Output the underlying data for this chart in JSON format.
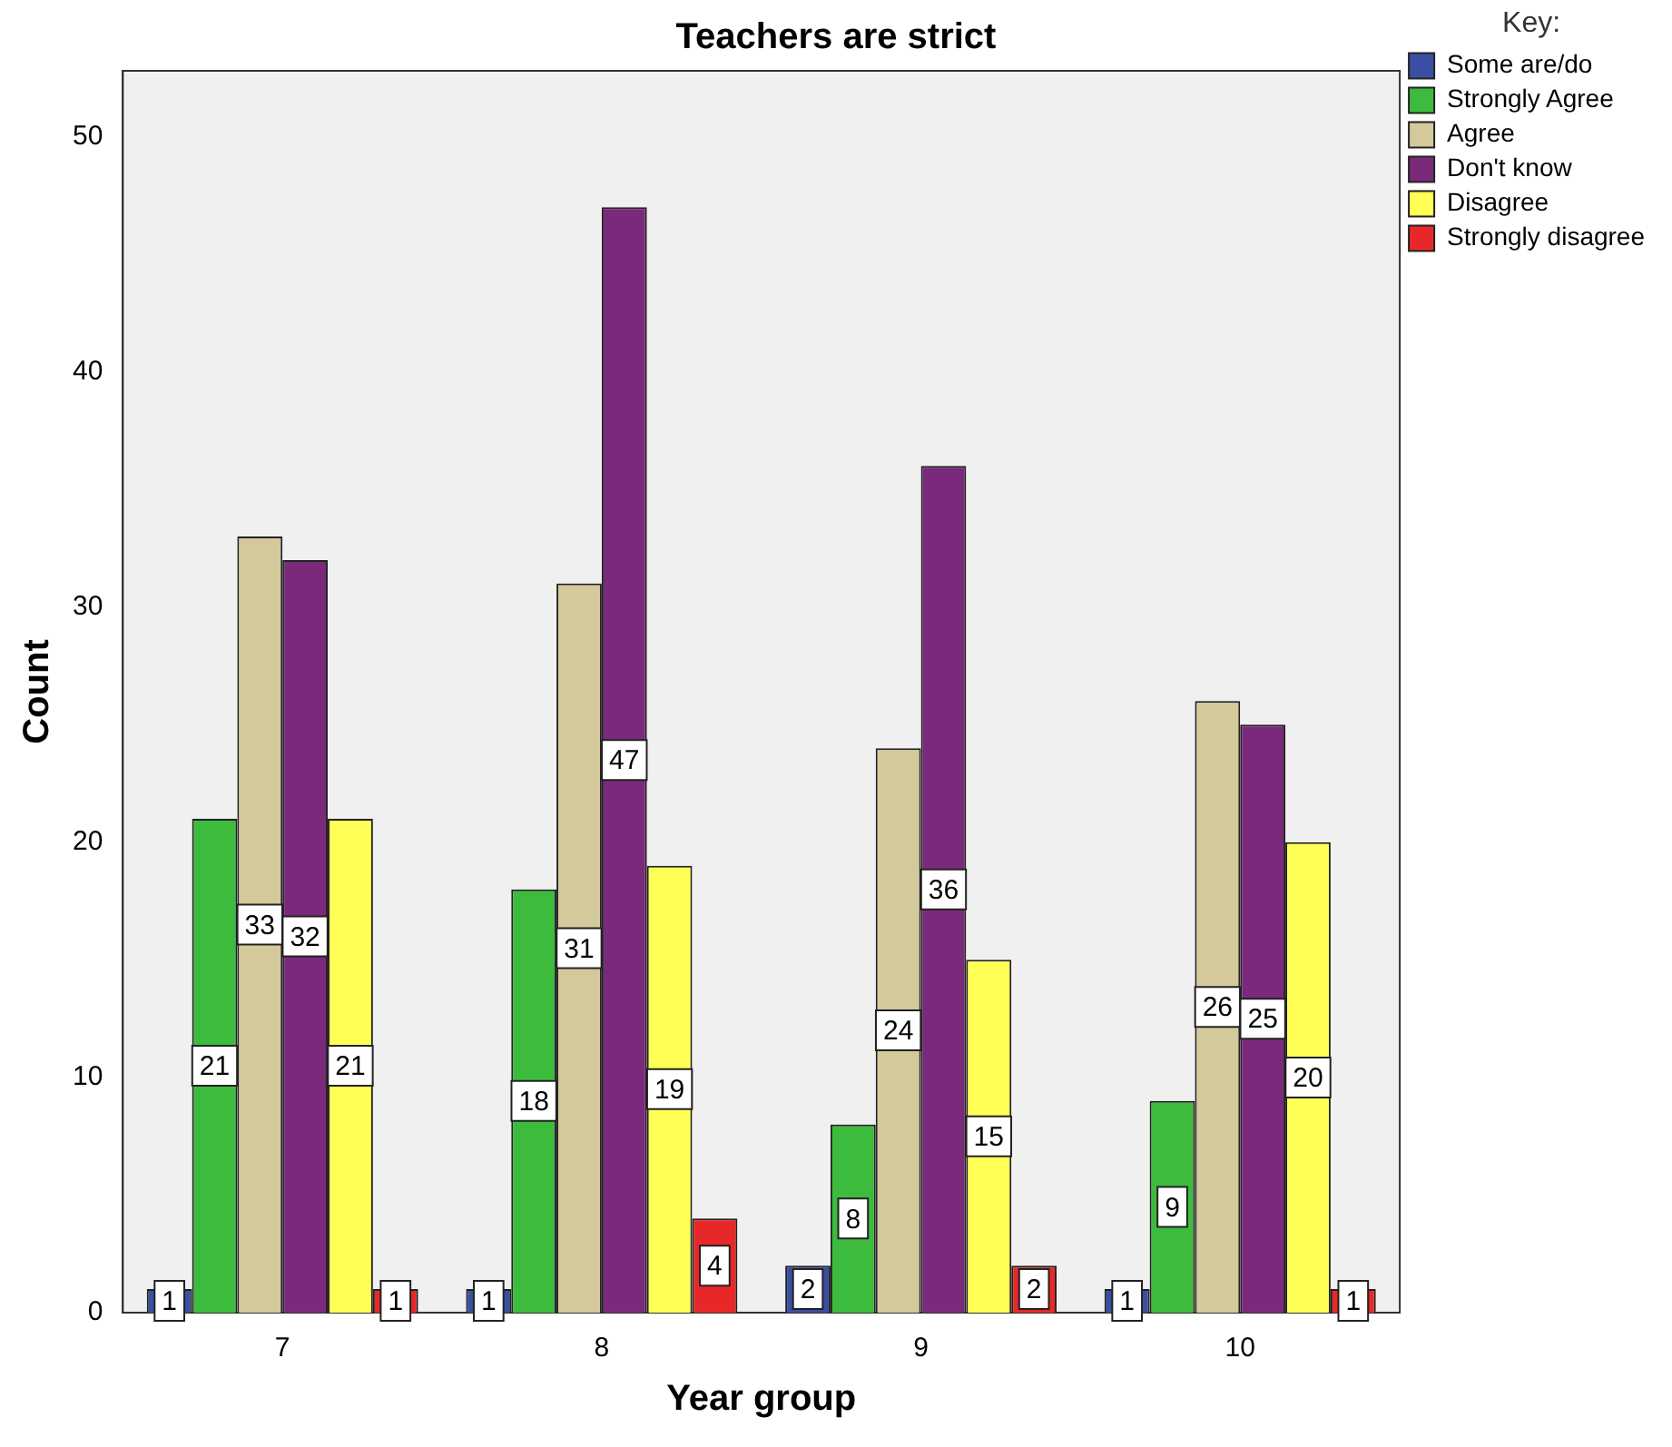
{
  "chart_data": {
    "type": "bar",
    "title": "Teachers are strict",
    "xlabel": "Year group",
    "ylabel": "Count",
    "legend_title": "Key:",
    "categories": [
      "7",
      "8",
      "9",
      "10"
    ],
    "series": [
      {
        "name": "Some are/do",
        "color": "#3a4fa3",
        "values": [
          1,
          1,
          2,
          1
        ]
      },
      {
        "name": "Strongly Agree",
        "color": "#3dbb3d",
        "values": [
          21,
          18,
          8,
          9
        ]
      },
      {
        "name": "Agree",
        "color": "#d3c99b",
        "values": [
          33,
          31,
          24,
          26
        ]
      },
      {
        "name": "Don't know",
        "color": "#7b2a7b",
        "values": [
          32,
          47,
          36,
          25
        ]
      },
      {
        "name": "Disagree",
        "color": "#ffff55",
        "values": [
          21,
          19,
          15,
          20
        ]
      },
      {
        "name": "Strongly disagree",
        "color": "#e82828",
        "values": [
          1,
          4,
          2,
          1
        ]
      }
    ],
    "ylim": [
      0,
      52.8
    ],
    "yticks": [
      0,
      10,
      20,
      30,
      40,
      50
    ],
    "grid": false,
    "legend": "top right",
    "data_labels": true
  }
}
